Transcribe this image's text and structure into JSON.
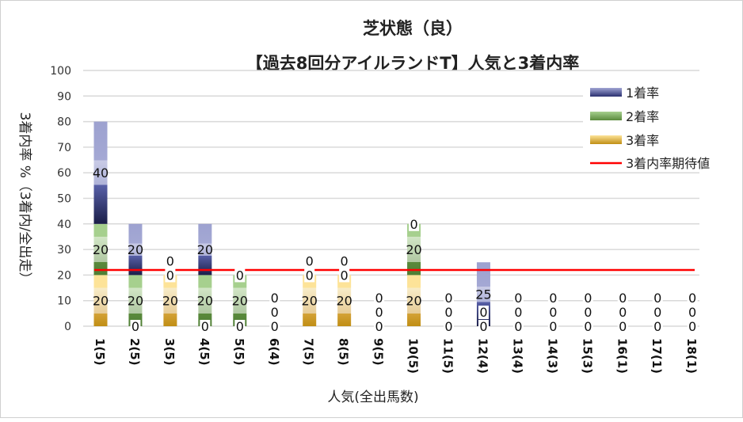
{
  "chart_data": {
    "type": "bar",
    "stacked": true,
    "title": "芝状態（良）",
    "subtitle": "【過去8回分アイルランドT】人気と3着内率",
    "xlabel": "人気(全出馬数)",
    "ylabel": "3着内率 %（3着内/全出走）",
    "ylim": [
      0,
      100
    ],
    "yticks": [
      0,
      10,
      20,
      30,
      40,
      50,
      60,
      70,
      80,
      90,
      100
    ],
    "grid": true,
    "legend_position": "top-right",
    "categories": [
      "1(5)",
      "2(5)",
      "3(5)",
      "4(5)",
      "5(5)",
      "6(4)",
      "7(5)",
      "8(5)",
      "9(5)",
      "10(5)",
      "11(5)",
      "12(4)",
      "13(4)",
      "14(3)",
      "15(3)",
      "16(1)",
      "17(1)",
      "18(1)"
    ],
    "series": [
      {
        "name": "3着率",
        "values": [
          20,
          0,
          20,
          0,
          0,
          0,
          20,
          20,
          0,
          20,
          0,
          0,
          0,
          0,
          0,
          0,
          0,
          0
        ],
        "color": "#c8961e"
      },
      {
        "name": "2着率",
        "values": [
          20,
          20,
          0,
          20,
          20,
          0,
          0,
          0,
          0,
          20,
          0,
          0,
          0,
          0,
          0,
          0,
          0,
          0
        ],
        "color": "#5a8a3c"
      },
      {
        "name": "1着率",
        "values": [
          40,
          20,
          0,
          20,
          0,
          0,
          0,
          0,
          0,
          0,
          0,
          25,
          0,
          0,
          0,
          0,
          0,
          0
        ],
        "color": "#2a3070"
      }
    ],
    "reference_line": {
      "name": "3着内率期待値",
      "value": 22,
      "color": "#ff0000"
    }
  }
}
